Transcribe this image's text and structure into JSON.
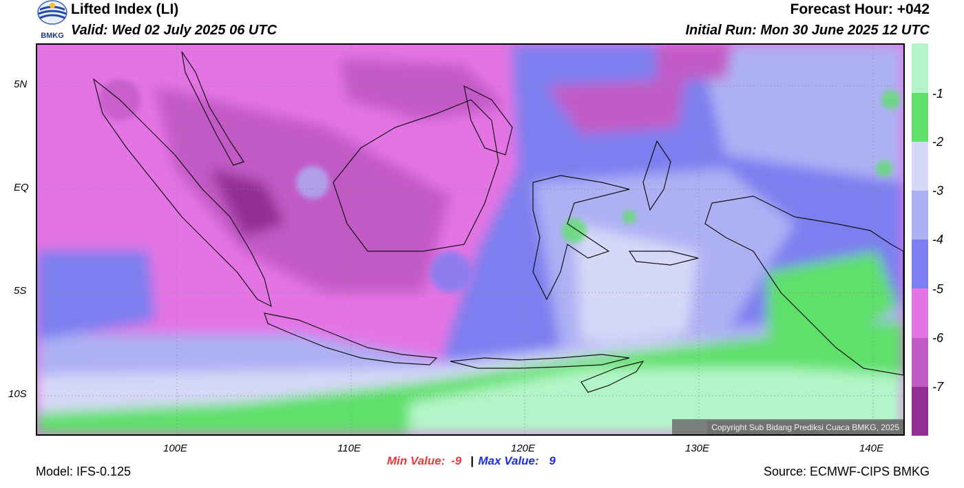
{
  "header": {
    "logo_text": "BMKG",
    "title": "Lifted Index (LI)",
    "valid": "Valid: Wed 02 July 2025 06 UTC",
    "forecast_hour": "Forecast Hour: +042",
    "initial_run": "Initial Run: Mon 30 June 2025 12 UTC"
  },
  "map": {
    "lat_labels": [
      "5N",
      "EQ",
      "5S",
      "10S"
    ],
    "lon_labels": [
      "100E",
      "110E",
      "120E",
      "130E",
      "140E"
    ],
    "copyright": "Copyright Sub Bidang Prediksi Cuaca BMKG, 2025"
  },
  "legend": {
    "labels": [
      "-1",
      "-2",
      "-3",
      "-4",
      "-5",
      "-6",
      "-7"
    ],
    "colors": [
      "#b3f5c8",
      "#5ee06a",
      "#d6d8f8",
      "#aeb0f4",
      "#7d7ff0",
      "#e474e4",
      "#c25ac6",
      "#912d94"
    ]
  },
  "footer": {
    "model": "Model: IFS-0.125",
    "min_label": "Min Value:",
    "min_value": "-9",
    "separator": "|",
    "max_label": "Max Value:",
    "max_value": "9",
    "source": "Source: ECMWF-CIPS BMKG"
  },
  "colors": {
    "min_color": "#e83a3a",
    "max_color": "#1b2ee0"
  }
}
